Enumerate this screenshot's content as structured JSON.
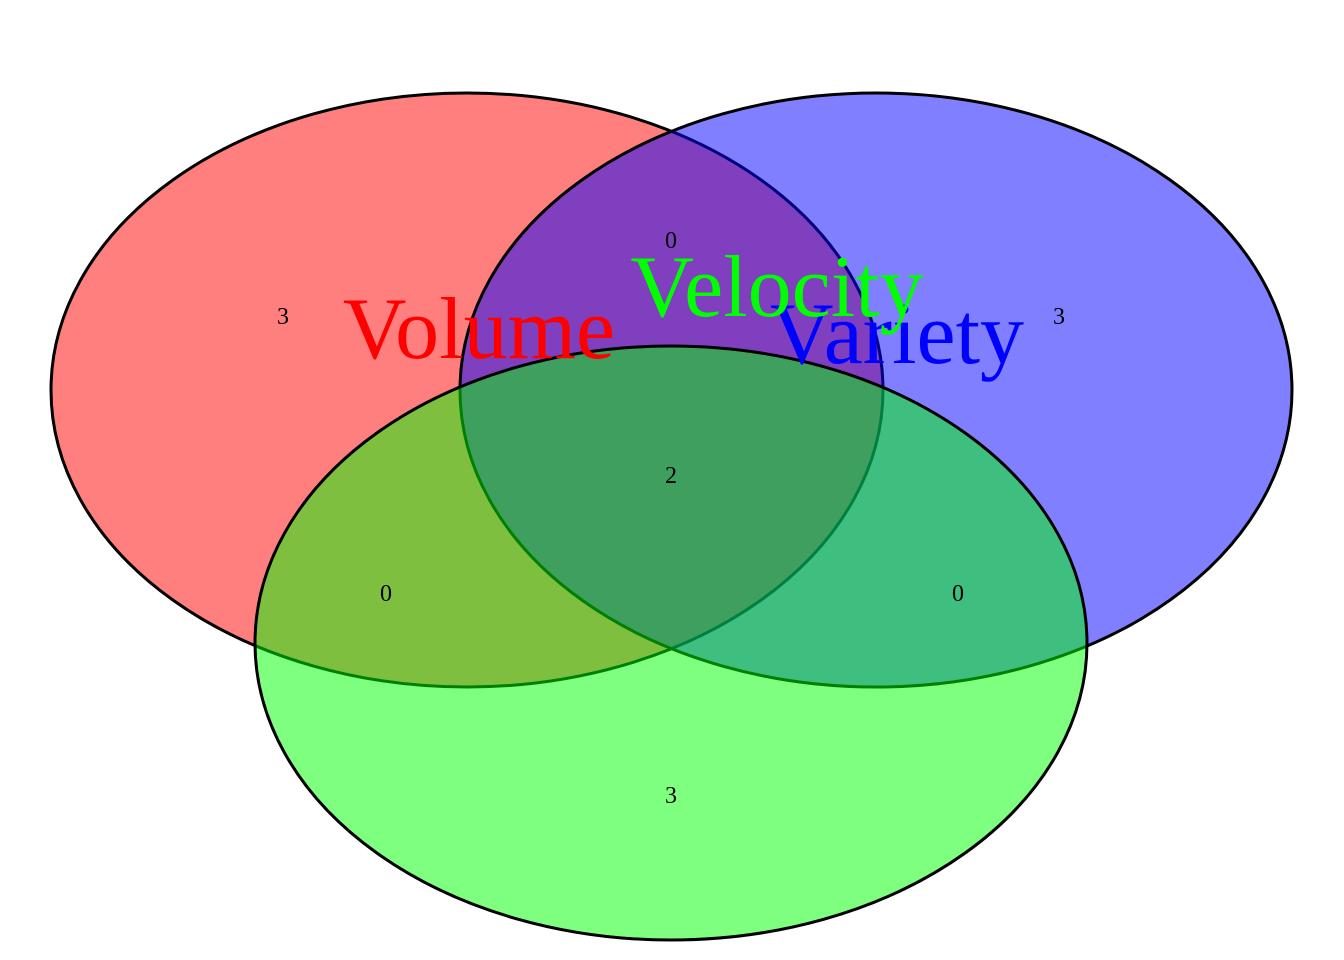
{
  "diagram": {
    "type": "venn",
    "sets": [
      {
        "key": "volume",
        "name": "Volume",
        "color": "#ff0000"
      },
      {
        "key": "variety",
        "name": "Variety",
        "color": "#0000ff"
      },
      {
        "key": "velocity",
        "name": "Velocity",
        "color": "#00ff00"
      }
    ],
    "regions": {
      "volume_only": "3",
      "variety_only": "3",
      "velocity_only": "3",
      "volume_variety": "0",
      "volume_velocity": "0",
      "variety_velocity": "0",
      "all_three": "2"
    },
    "fill_opacity": 0.5
  }
}
